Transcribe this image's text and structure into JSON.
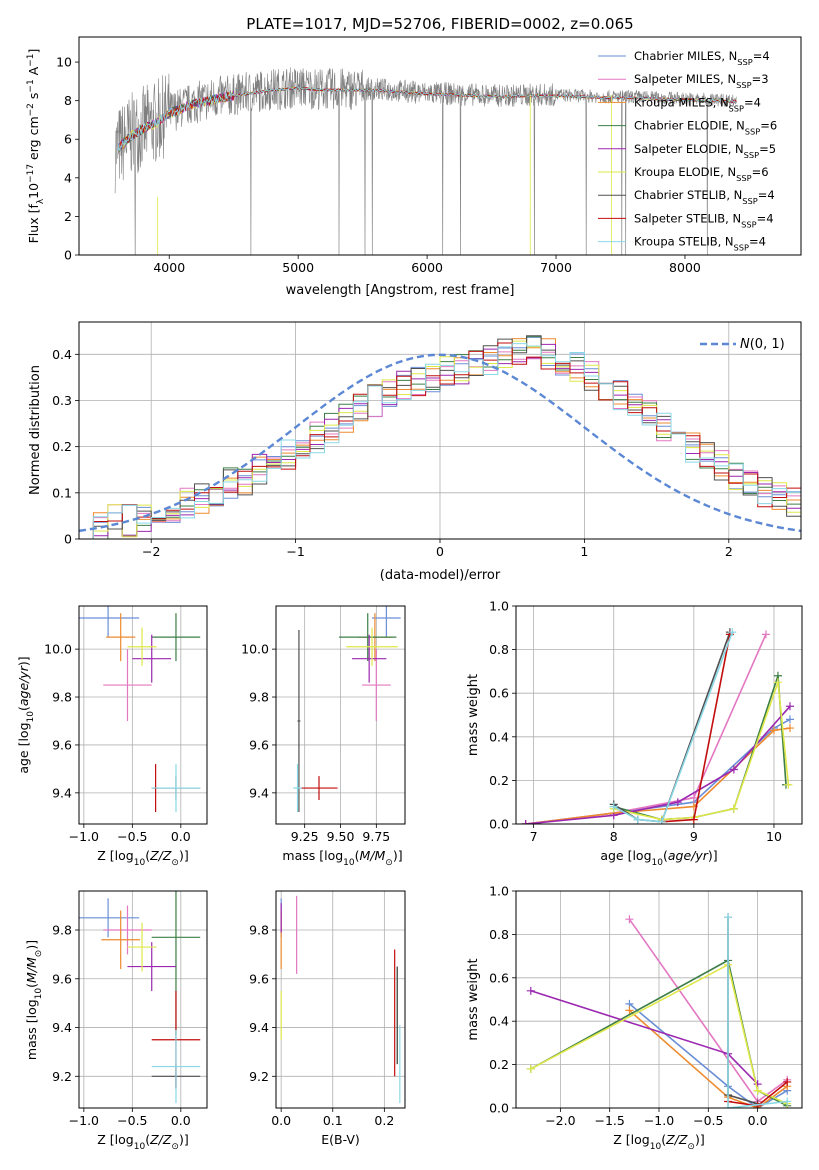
{
  "figure_title": "PLATE=1017, MJD=52706, FIBERID=0002, z=0.065",
  "chart_data": [
    {
      "id": "spectrum",
      "type": "line",
      "title": "PLATE=1017, MJD=52706, FIBERID=0002, z=0.065",
      "xlabel": "wavelength [Angstrom, rest frame]",
      "ylabel": "Flux [f_λ 10^-17 erg cm^-2 s^-1 A^-1]",
      "xlim": [
        3300,
        8900
      ],
      "ylim": [
        0,
        11.3
      ],
      "xticks": [
        4000,
        5000,
        6000,
        7000,
        8000
      ],
      "yticks": [
        0,
        2,
        4,
        6,
        8,
        10
      ],
      "grid": false,
      "legend_position": "top-right",
      "data_envelope": {
        "x": [
          3580,
          3700,
          3800,
          3900,
          4000,
          4200,
          4400,
          4600,
          4800,
          5000,
          5200,
          5400,
          5600,
          5800,
          6000,
          6200,
          6400,
          6600,
          6800,
          7000,
          7200,
          7400,
          7600,
          7800,
          8000,
          8200,
          8400
        ],
        "y": [
          5.4,
          6.2,
          6.6,
          6.9,
          7.4,
          7.9,
          8.2,
          8.4,
          8.6,
          8.7,
          8.6,
          8.6,
          8.6,
          8.5,
          8.4,
          8.35,
          8.3,
          8.25,
          8.3,
          8.3,
          8.25,
          8.2,
          8.2,
          8.15,
          8.1,
          8.05,
          8.0
        ]
      },
      "legend": [
        {
          "name": "Chabrier MILES, N_SSP=4",
          "color": "#6a8ed6"
        },
        {
          "name": "Salpeter MILES, N_SSP=3",
          "color": "#e377c2"
        },
        {
          "name": "Kroupa MILES, N_SSP=4",
          "color": "#ee8b2f"
        },
        {
          "name": "Chabrier ELODIE, N_SSP=6",
          "color": "#3d7f47"
        },
        {
          "name": "Salpeter ELODIE, N_SSP=5",
          "color": "#9b27b0"
        },
        {
          "name": "Kroupa ELODIE, N_SSP=6",
          "color": "#dfe84a"
        },
        {
          "name": "Chabrier STELIB, N_SSP=4",
          "color": "#505050"
        },
        {
          "name": "Salpeter STELIB, N_SSP=4",
          "color": "#c20e0e"
        },
        {
          "name": "Kroupa STELIB, N_SSP=4",
          "color": "#8ad8e6"
        }
      ]
    },
    {
      "id": "residuals",
      "type": "histogram",
      "xlabel": "(data-model)/error",
      "ylabel": "Normed distribution",
      "xlim": [
        -2.5,
        2.5
      ],
      "ylim": [
        0,
        0.47
      ],
      "xticks": [
        -2,
        -1,
        0,
        1,
        2
      ],
      "yticks": [
        0.0,
        0.1,
        0.2,
        0.3,
        0.4
      ],
      "grid": true,
      "legend": "N(0,1)",
      "legend_position": "top-right",
      "bin_width": 0.1,
      "bins_start": -2.5,
      "base_histogram": [
        0.03,
        0.03,
        0.04,
        0.04,
        0.05,
        0.06,
        0.07,
        0.08,
        0.09,
        0.1,
        0.12,
        0.13,
        0.15,
        0.16,
        0.18,
        0.2,
        0.22,
        0.24,
        0.26,
        0.28,
        0.3,
        0.32,
        0.33,
        0.34,
        0.35,
        0.36,
        0.37,
        0.38,
        0.39,
        0.4,
        0.41,
        0.41,
        0.4,
        0.39,
        0.37,
        0.35,
        0.33,
        0.31,
        0.29,
        0.27,
        0.24,
        0.22,
        0.2,
        0.18,
        0.16,
        0.14,
        0.12,
        0.1,
        0.09,
        0.08
      ]
    },
    {
      "id": "age_vs_Z",
      "type": "scatter",
      "xlabel": "Z [log10(Z/Z⊙)]",
      "ylabel": "age  [log10(age/yr)]",
      "xlim": [
        -1.05,
        0.27
      ],
      "ylim": [
        9.27,
        10.18
      ],
      "xticks": [
        "-1.0",
        "-0.5",
        "0.0"
      ],
      "yticks": [
        "9.4",
        "9.6",
        "9.8",
        "10.0"
      ],
      "grid": true,
      "points": [
        {
          "x": -0.75,
          "y": 10.13,
          "xerr": 0.32,
          "yerr": 0.08,
          "color": "#6a8ed6"
        },
        {
          "x": -0.55,
          "y": 9.85,
          "xerr": 0.25,
          "yerr": 0.15,
          "color": "#e377c2"
        },
        {
          "x": -0.62,
          "y": 10.05,
          "xerr": 0.15,
          "yerr": 0.1,
          "color": "#ee8b2f"
        },
        {
          "x": -0.05,
          "y": 10.05,
          "xerr": 0.25,
          "yerr": 0.1,
          "color": "#3d7f47"
        },
        {
          "x": -0.3,
          "y": 9.96,
          "xerr": 0.2,
          "yerr": 0.1,
          "color": "#9b27b0"
        },
        {
          "x": -0.4,
          "y": 10.01,
          "xerr": 0.15,
          "yerr": 0.08,
          "color": "#dfe84a"
        },
        {
          "x": -0.05,
          "y": 9.42,
          "xerr": 0.25,
          "yerr": 0.05,
          "color": "#505050"
        },
        {
          "x": -0.26,
          "y": 9.42,
          "xerr": 0.02,
          "yerr": 0.1,
          "color": "#c20e0e"
        },
        {
          "x": -0.05,
          "y": 9.42,
          "xerr": 0.25,
          "yerr": 0.1,
          "color": "#8ad8e6"
        }
      ]
    },
    {
      "id": "age_vs_mass",
      "type": "scatter",
      "xlabel": "mass [log10(M/M⊙)]",
      "ylabel": "",
      "xlim": [
        9.05,
        9.95
      ],
      "ylim": [
        9.27,
        10.18
      ],
      "xticks": [
        "9.25",
        "9.50",
        "9.75"
      ],
      "yticks": [
        "9.4",
        "9.6",
        "9.8",
        "10.0"
      ],
      "grid": true,
      "points": [
        {
          "x": 9.82,
          "y": 10.13,
          "xerr": 0.1,
          "yerr": 0.08,
          "color": "#6a8ed6"
        },
        {
          "x": 9.75,
          "y": 9.85,
          "xerr": 0.1,
          "yerr": 0.15,
          "color": "#e377c2"
        },
        {
          "x": 9.74,
          "y": 10.05,
          "xerr": 0.12,
          "yerr": 0.1,
          "color": "#ee8b2f"
        },
        {
          "x": 9.69,
          "y": 10.05,
          "xerr": 0.2,
          "yerr": 0.1,
          "color": "#3d7f47"
        },
        {
          "x": 9.7,
          "y": 9.96,
          "xerr": 0.12,
          "yerr": 0.1,
          "color": "#9b27b0"
        },
        {
          "x": 9.72,
          "y": 10.01,
          "xerr": 0.18,
          "yerr": 0.08,
          "color": "#dfe84a"
        },
        {
          "x": 9.21,
          "y": 9.7,
          "xerr": 0.01,
          "yerr": 0.38,
          "color": "#505050"
        },
        {
          "x": 9.35,
          "y": 9.42,
          "xerr": 0.13,
          "yerr": 0.05,
          "color": "#c20e0e"
        },
        {
          "x": 9.2,
          "y": 9.42,
          "xerr": 0.03,
          "yerr": 0.1,
          "color": "#8ad8e6"
        }
      ]
    },
    {
      "id": "weight_vs_age",
      "type": "line",
      "xlabel": "age  [log10(age/yr)]",
      "ylabel": "mass weight",
      "xlim": [
        6.78,
        10.35
      ],
      "ylim": [
        0,
        1.0
      ],
      "xticks": [
        "7",
        "8",
        "9",
        "10"
      ],
      "yticks": [
        "0.0",
        "0.2",
        "0.4",
        "0.6",
        "0.8",
        "1.0"
      ],
      "grid": true,
      "series": [
        {
          "color": "#6a8ed6",
          "x": [
            6.9,
            8.0,
            9.0,
            10.0,
            10.2
          ],
          "y": [
            0.0,
            0.05,
            0.1,
            0.44,
            0.48
          ]
        },
        {
          "color": "#e377c2",
          "x": [
            6.9,
            8.0,
            9.0,
            9.9
          ],
          "y": [
            0.0,
            0.05,
            0.12,
            0.87
          ]
        },
        {
          "color": "#ee8b2f",
          "x": [
            6.9,
            8.0,
            9.0,
            10.0,
            10.2
          ],
          "y": [
            0.0,
            0.05,
            0.08,
            0.43,
            0.44
          ]
        },
        {
          "color": "#3d7f47",
          "x": [
            8.0,
            8.6,
            9.0,
            9.5,
            10.05,
            10.15
          ],
          "y": [
            0.08,
            0.02,
            0.03,
            0.07,
            0.68,
            0.18
          ]
        },
        {
          "color": "#9b27b0",
          "x": [
            6.9,
            8.0,
            8.8,
            9.5,
            10.2
          ],
          "y": [
            0.0,
            0.04,
            0.1,
            0.25,
            0.54
          ]
        },
        {
          "color": "#dfe84a",
          "x": [
            8.0,
            8.6,
            9.0,
            9.5,
            10.05,
            10.18
          ],
          "y": [
            0.07,
            0.02,
            0.03,
            0.07,
            0.65,
            0.18
          ]
        },
        {
          "color": "#505050",
          "x": [
            8.0,
            8.3,
            8.6,
            9.45
          ],
          "y": [
            0.09,
            0.02,
            0.01,
            0.88
          ]
        },
        {
          "color": "#c20e0e",
          "x": [
            8.6,
            9.0,
            9.45
          ],
          "y": [
            0.01,
            0.02,
            0.87
          ]
        },
        {
          "color": "#8ad8e6",
          "x": [
            8.0,
            8.3,
            8.6,
            9.48
          ],
          "y": [
            0.08,
            0.02,
            0.01,
            0.88
          ]
        }
      ]
    },
    {
      "id": "mass_vs_Z",
      "type": "scatter",
      "xlabel": "Z [log10(Z/Z⊙)]",
      "ylabel": "mass [log10(M/M⊙)]",
      "xlim": [
        -1.05,
        0.27
      ],
      "ylim": [
        9.07,
        9.96
      ],
      "xticks": [
        "-1.0",
        "-0.5",
        "0.0"
      ],
      "yticks": [
        "9.2",
        "9.4",
        "9.6",
        "9.8"
      ],
      "grid": true,
      "points": [
        {
          "x": -0.75,
          "y": 9.85,
          "xerr": 0.32,
          "yerr": 0.08,
          "color": "#6a8ed6"
        },
        {
          "x": -0.55,
          "y": 9.8,
          "xerr": 0.25,
          "yerr": 0.1,
          "color": "#e377c2"
        },
        {
          "x": -0.62,
          "y": 9.76,
          "xerr": 0.2,
          "yerr": 0.12,
          "color": "#ee8b2f"
        },
        {
          "x": -0.05,
          "y": 9.77,
          "xerr": 0.25,
          "yerr": 0.4,
          "color": "#3d7f47"
        },
        {
          "x": -0.3,
          "y": 9.65,
          "xerr": 0.25,
          "yerr": 0.1,
          "color": "#9b27b0"
        },
        {
          "x": -0.4,
          "y": 9.73,
          "xerr": 0.15,
          "yerr": 0.1,
          "color": "#dfe84a"
        },
        {
          "x": -0.05,
          "y": 9.2,
          "xerr": 0.25,
          "yerr": 0.05,
          "color": "#505050"
        },
        {
          "x": -0.05,
          "y": 9.35,
          "xerr": 0.25,
          "yerr": 0.2,
          "color": "#c20e0e"
        },
        {
          "x": -0.05,
          "y": 9.24,
          "xerr": 0.25,
          "yerr": 0.15,
          "color": "#8ad8e6"
        }
      ]
    },
    {
      "id": "mass_vs_ebv",
      "type": "scatter",
      "xlabel": "E(B-V)",
      "ylabel": "",
      "xlim": [
        -0.01,
        0.24
      ],
      "ylim": [
        9.07,
        9.96
      ],
      "xticks": [
        "0.0",
        "0.1",
        "0.2"
      ],
      "yticks": [
        "9.2",
        "9.4",
        "9.6",
        "9.8"
      ],
      "grid": true,
      "points": [
        {
          "x": 0.0,
          "y": 9.85,
          "xerr": 0.0,
          "yerr": 0.08,
          "color": "#6a8ed6"
        },
        {
          "x": 0.03,
          "y": 9.78,
          "xerr": 0.0,
          "yerr": 0.16,
          "color": "#e377c2"
        },
        {
          "x": 0.0,
          "y": 9.76,
          "xerr": 0.0,
          "yerr": 0.12,
          "color": "#ee8b2f"
        },
        {
          "x": 0.225,
          "y": 9.45,
          "xerr": 0.0,
          "yerr": 0.2,
          "color": "#3d7f47"
        },
        {
          "x": 0.0,
          "y": 9.85,
          "xerr": 0.0,
          "yerr": 0.06,
          "color": "#9b27b0"
        },
        {
          "x": 0.0,
          "y": 9.45,
          "xerr": 0.0,
          "yerr": 0.1,
          "color": "#dfe84a"
        },
        {
          "x": 0.225,
          "y": 9.45,
          "xerr": 0.0,
          "yerr": 0.2,
          "color": "#505050"
        },
        {
          "x": 0.22,
          "y": 9.46,
          "xerr": 0.0,
          "yerr": 0.26,
          "color": "#c20e0e"
        },
        {
          "x": 0.23,
          "y": 9.25,
          "xerr": 0.0,
          "yerr": 0.16,
          "color": "#8ad8e6"
        }
      ]
    },
    {
      "id": "weight_vs_Z",
      "type": "line",
      "xlabel": "Z [log10(Z/Z⊙)]",
      "ylabel": "mass weight",
      "xlim": [
        -2.45,
        0.45
      ],
      "ylim": [
        0,
        1.0
      ],
      "xticks": [
        "-2.0",
        "-1.5",
        "-1.0",
        "-0.5",
        "0.0"
      ],
      "yticks": [
        "0.0",
        "0.2",
        "0.4",
        "0.6",
        "0.8",
        "1.0"
      ],
      "grid": true,
      "series": [
        {
          "color": "#6a8ed6",
          "x": [
            -1.3,
            -0.3,
            0.0,
            0.3
          ],
          "y": [
            0.48,
            0.1,
            0.0,
            0.08
          ]
        },
        {
          "color": "#e377c2",
          "x": [
            -1.3,
            0.0,
            0.3
          ],
          "y": [
            0.87,
            0.03,
            0.13
          ]
        },
        {
          "color": "#ee8b2f",
          "x": [
            -1.3,
            -0.3,
            0.0,
            0.3
          ],
          "y": [
            0.45,
            0.05,
            0.0,
            0.1
          ]
        },
        {
          "color": "#3d7f47",
          "x": [
            -2.3,
            -0.3,
            0.0,
            0.3
          ],
          "y": [
            0.18,
            0.68,
            0.08,
            0.01
          ]
        },
        {
          "color": "#9b27b0",
          "x": [
            -2.3,
            -0.3,
            0.0
          ],
          "y": [
            0.54,
            0.25,
            0.11
          ]
        },
        {
          "color": "#dfe84a",
          "x": [
            -2.3,
            -0.3,
            0.0,
            0.3
          ],
          "y": [
            0.18,
            0.66,
            0.08,
            0.02
          ]
        },
        {
          "color": "#505050",
          "x": [
            -0.3,
            -0.3,
            0.0
          ],
          "y": [
            0.88,
            0.06,
            0.02
          ]
        },
        {
          "color": "#c20e0e",
          "x": [
            -0.3,
            0.0,
            0.3
          ],
          "y": [
            0.03,
            0.01,
            0.12
          ]
        },
        {
          "color": "#8ad8e6",
          "x": [
            -0.3,
            -0.3,
            0.3
          ],
          "y": [
            0.88,
            0.0,
            0.03
          ]
        }
      ]
    }
  ]
}
